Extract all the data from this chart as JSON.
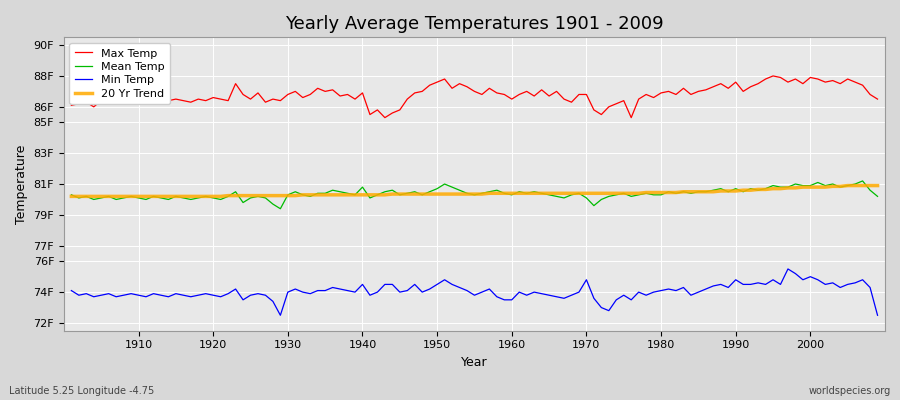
{
  "title": "Yearly Average Temperatures 1901 - 2009",
  "xlabel": "Year",
  "ylabel": "Temperature",
  "subtitle_left": "Latitude 5.25 Longitude -4.75",
  "subtitle_right": "worldspecies.org",
  "years": [
    1901,
    1902,
    1903,
    1904,
    1905,
    1906,
    1907,
    1908,
    1909,
    1910,
    1911,
    1912,
    1913,
    1914,
    1915,
    1916,
    1917,
    1918,
    1919,
    1920,
    1921,
    1922,
    1923,
    1924,
    1925,
    1926,
    1927,
    1928,
    1929,
    1930,
    1931,
    1932,
    1933,
    1934,
    1935,
    1936,
    1937,
    1938,
    1939,
    1940,
    1941,
    1942,
    1943,
    1944,
    1945,
    1946,
    1947,
    1948,
    1949,
    1950,
    1951,
    1952,
    1953,
    1954,
    1955,
    1956,
    1957,
    1958,
    1959,
    1960,
    1961,
    1962,
    1963,
    1964,
    1965,
    1966,
    1967,
    1968,
    1969,
    1970,
    1971,
    1972,
    1973,
    1974,
    1975,
    1976,
    1977,
    1978,
    1979,
    1980,
    1981,
    1982,
    1983,
    1984,
    1985,
    1986,
    1987,
    1988,
    1989,
    1990,
    1991,
    1992,
    1993,
    1994,
    1995,
    1996,
    1997,
    1998,
    1999,
    2000,
    2001,
    2002,
    2003,
    2004,
    2005,
    2006,
    2007,
    2008,
    2009
  ],
  "max_temp": [
    86.1,
    86.2,
    86.3,
    86.0,
    86.4,
    86.3,
    86.3,
    86.4,
    86.5,
    86.6,
    86.5,
    86.7,
    86.3,
    86.4,
    86.5,
    86.4,
    86.3,
    86.5,
    86.4,
    86.6,
    86.5,
    86.4,
    87.5,
    86.8,
    86.5,
    86.9,
    86.3,
    86.5,
    86.4,
    86.8,
    87.0,
    86.6,
    86.8,
    87.2,
    87.0,
    87.1,
    86.7,
    86.8,
    86.5,
    86.9,
    85.5,
    85.8,
    85.3,
    85.6,
    85.8,
    86.5,
    86.9,
    87.0,
    87.4,
    87.6,
    87.8,
    87.2,
    87.5,
    87.3,
    87.0,
    86.8,
    87.2,
    86.9,
    86.8,
    86.5,
    86.8,
    87.0,
    86.7,
    87.1,
    86.7,
    87.0,
    86.5,
    86.3,
    86.8,
    86.8,
    85.8,
    85.5,
    86.0,
    86.2,
    86.4,
    85.3,
    86.5,
    86.8,
    86.6,
    86.9,
    87.0,
    86.8,
    87.2,
    86.8,
    87.0,
    87.1,
    87.3,
    87.5,
    87.2,
    87.6,
    87.0,
    87.3,
    87.5,
    87.8,
    88.0,
    87.9,
    87.6,
    87.8,
    87.5,
    87.9,
    87.8,
    87.6,
    87.7,
    87.5,
    87.8,
    87.6,
    87.4,
    86.8,
    86.5
  ],
  "mean_temp": [
    80.3,
    80.1,
    80.2,
    80.0,
    80.1,
    80.2,
    80.0,
    80.1,
    80.2,
    80.1,
    80.0,
    80.2,
    80.1,
    80.0,
    80.2,
    80.1,
    80.0,
    80.1,
    80.2,
    80.1,
    80.0,
    80.2,
    80.5,
    79.8,
    80.1,
    80.2,
    80.1,
    79.7,
    79.4,
    80.3,
    80.5,
    80.3,
    80.2,
    80.4,
    80.4,
    80.6,
    80.5,
    80.4,
    80.3,
    80.8,
    80.1,
    80.3,
    80.5,
    80.6,
    80.3,
    80.4,
    80.5,
    80.3,
    80.5,
    80.7,
    81.0,
    80.8,
    80.6,
    80.4,
    80.3,
    80.4,
    80.5,
    80.6,
    80.4,
    80.3,
    80.5,
    80.4,
    80.5,
    80.4,
    80.3,
    80.2,
    80.1,
    80.3,
    80.4,
    80.1,
    79.6,
    80.0,
    80.2,
    80.3,
    80.4,
    80.2,
    80.3,
    80.4,
    80.3,
    80.3,
    80.5,
    80.4,
    80.5,
    80.4,
    80.5,
    80.5,
    80.6,
    80.7,
    80.5,
    80.7,
    80.5,
    80.7,
    80.6,
    80.7,
    80.9,
    80.8,
    80.8,
    81.0,
    80.9,
    80.9,
    81.1,
    80.9,
    81.0,
    80.8,
    80.9,
    81.0,
    81.2,
    80.6,
    80.2
  ],
  "min_temp": [
    74.1,
    73.8,
    73.9,
    73.7,
    73.8,
    73.9,
    73.7,
    73.8,
    73.9,
    73.8,
    73.7,
    73.9,
    73.8,
    73.7,
    73.9,
    73.8,
    73.7,
    73.8,
    73.9,
    73.8,
    73.7,
    73.9,
    74.2,
    73.5,
    73.8,
    73.9,
    73.8,
    73.4,
    72.5,
    74.0,
    74.2,
    74.0,
    73.9,
    74.1,
    74.1,
    74.3,
    74.2,
    74.1,
    74.0,
    74.5,
    73.8,
    74.0,
    74.5,
    74.5,
    74.0,
    74.1,
    74.5,
    74.0,
    74.2,
    74.5,
    74.8,
    74.5,
    74.3,
    74.1,
    73.8,
    74.0,
    74.2,
    73.7,
    73.5,
    73.5,
    74.0,
    73.8,
    74.0,
    73.9,
    73.8,
    73.7,
    73.6,
    73.8,
    74.0,
    74.8,
    73.6,
    73.0,
    72.8,
    73.5,
    73.8,
    73.5,
    74.0,
    73.8,
    74.0,
    74.1,
    74.2,
    74.1,
    74.3,
    73.8,
    74.0,
    74.2,
    74.4,
    74.5,
    74.3,
    74.8,
    74.5,
    74.5,
    74.6,
    74.5,
    74.8,
    74.5,
    75.5,
    75.2,
    74.8,
    75.0,
    74.8,
    74.5,
    74.6,
    74.3,
    74.5,
    74.6,
    74.8,
    74.3,
    72.5
  ],
  "trend": [
    80.2,
    80.2,
    80.2,
    80.2,
    80.2,
    80.2,
    80.2,
    80.2,
    80.2,
    80.2,
    80.2,
    80.2,
    80.2,
    80.2,
    80.2,
    80.2,
    80.2,
    80.2,
    80.2,
    80.2,
    80.2,
    80.25,
    80.25,
    80.25,
    80.25,
    80.25,
    80.25,
    80.25,
    80.25,
    80.25,
    80.25,
    80.3,
    80.3,
    80.3,
    80.3,
    80.3,
    80.3,
    80.3,
    80.3,
    80.3,
    80.3,
    80.3,
    80.3,
    80.35,
    80.35,
    80.35,
    80.35,
    80.35,
    80.35,
    80.35,
    80.35,
    80.35,
    80.35,
    80.35,
    80.35,
    80.35,
    80.4,
    80.4,
    80.4,
    80.4,
    80.4,
    80.4,
    80.4,
    80.4,
    80.4,
    80.4,
    80.4,
    80.4,
    80.4,
    80.4,
    80.4,
    80.4,
    80.4,
    80.4,
    80.4,
    80.4,
    80.4,
    80.45,
    80.45,
    80.45,
    80.45,
    80.45,
    80.5,
    80.5,
    80.5,
    80.5,
    80.5,
    80.55,
    80.55,
    80.55,
    80.6,
    80.6,
    80.65,
    80.65,
    80.7,
    80.7,
    80.75,
    80.75,
    80.8,
    80.8,
    80.8,
    80.8,
    80.85,
    80.85,
    80.9,
    80.9,
    80.9,
    80.9,
    80.9
  ],
  "max_color": "#ff0000",
  "mean_color": "#00bb00",
  "min_color": "#0000ff",
  "trend_color": "#ffaa00",
  "legend_labels": [
    "Max Temp",
    "Mean Temp",
    "Min Temp",
    "20 Yr Trend"
  ],
  "yticks": [
    72,
    74,
    76,
    77,
    79,
    81,
    83,
    85,
    86,
    88,
    90
  ],
  "ytick_labels": [
    "72F",
    "74F",
    "76F",
    "77F",
    "79F",
    "81F",
    "83F",
    "85F",
    "86F",
    "88F",
    "90F"
  ],
  "xtick_vals": [
    1910,
    1920,
    1930,
    1940,
    1950,
    1960,
    1970,
    1980,
    1990,
    2000
  ],
  "ylim": [
    71.5,
    90.5
  ],
  "xlim": [
    1900,
    2010
  ]
}
